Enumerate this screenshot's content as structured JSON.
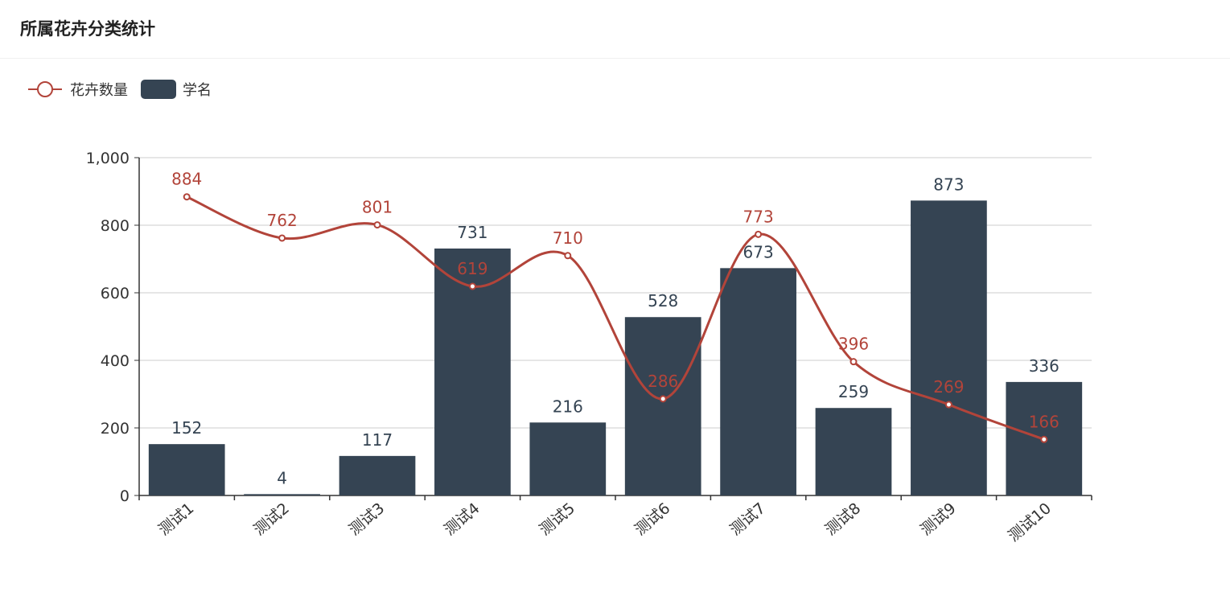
{
  "page": {
    "title": "所属花卉分类统计"
  },
  "colors": {
    "line": "#b2443a",
    "bar": "#354453",
    "axis": "#333333",
    "grid": "#cccccc"
  },
  "chart_data": {
    "type": "bar",
    "title": "所属花卉分类统计",
    "categories": [
      "测试1",
      "测试2",
      "测试3",
      "测试4",
      "测试5",
      "测试6",
      "测试7",
      "测试8",
      "测试9",
      "测试10"
    ],
    "series": [
      {
        "name": "花卉数量",
        "type": "line",
        "smooth": true,
        "values": [
          884,
          762,
          801,
          619,
          710,
          286,
          773,
          396,
          269,
          166
        ]
      },
      {
        "name": "学名",
        "type": "bar",
        "values": [
          152,
          4,
          117,
          731,
          216,
          528,
          673,
          259,
          873,
          336
        ]
      }
    ],
    "y_ticks": [
      "0",
      "200",
      "400",
      "600",
      "800",
      "1,000"
    ],
    "ylim": [
      0,
      1000
    ],
    "grid": true,
    "legend_position": "top-left"
  }
}
